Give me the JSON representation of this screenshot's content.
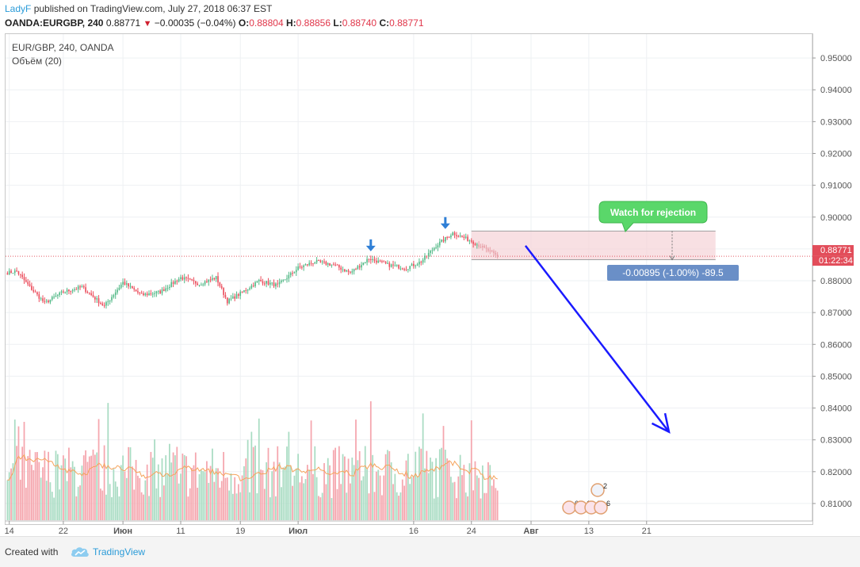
{
  "header": {
    "author": "LadyF",
    "published_text": "published on TradingView.com, July 27, 2018 06:37 EST"
  },
  "quote": {
    "symbol": "OANDA:EURGBP, 240",
    "last": "0.88771",
    "change": "−0.00035 (−0.04%)",
    "o_label": "O:",
    "o_value": "0.88804",
    "h_label": "H:",
    "h_value": "0.88856",
    "l_label": "L:",
    "l_value": "0.88740",
    "c_label": "C:",
    "c_value": "0.88771"
  },
  "legend": {
    "series": "EUR/GBP, 240, OANDA",
    "volume": "Объём (20)"
  },
  "footer": {
    "created_with": "Created with",
    "brand": "TradingView"
  },
  "colors": {
    "up": "#53b987",
    "down": "#eb4d5c",
    "vol_up": "#a9dcc3",
    "vol_down": "#f5a6ae",
    "ma": "#f5a35b",
    "arrow": "#1a1aff",
    "box_fill": "#f6d6d9",
    "callout": "#5ad76a",
    "measure_label": "#6a8fc7"
  },
  "chart_data": {
    "type": "candlestick",
    "symbol": "EUR/GBP",
    "timeframe": "240",
    "y_range": [
      0.8045,
      0.9575
    ],
    "y_ticks": [
      "0.95000",
      "0.94000",
      "0.93000",
      "0.92000",
      "0.91000",
      "0.90000",
      "0.89000",
      "0.88000",
      "0.87000",
      "0.86000",
      "0.85000",
      "0.84000",
      "0.83000",
      "0.82000",
      "0.81000"
    ],
    "y_tick_values": [
      0.95,
      0.94,
      0.93,
      0.92,
      0.91,
      0.9,
      0.89,
      0.88,
      0.87,
      0.86,
      0.85,
      0.84,
      0.83,
      0.82,
      0.81
    ],
    "x_labels": [
      {
        "label": "14",
        "bar": 1
      },
      {
        "label": "22",
        "bar": 30
      },
      {
        "label": "Июн",
        "bar": 62
      },
      {
        "label": "11",
        "bar": 93
      },
      {
        "label": "19",
        "bar": 125
      },
      {
        "label": "Июл",
        "bar": 156
      },
      {
        "label": "16",
        "bar": 218
      },
      {
        "label": "24",
        "bar": 249
      },
      {
        "label": "Авг",
        "bar": 281
      },
      {
        "label": "13",
        "bar": 312
      },
      {
        "label": "21",
        "bar": 343
      }
    ],
    "x_bar_range": [
      -1,
      432
    ],
    "key_points": [
      {
        "bar": 0,
        "price": 0.8825
      },
      {
        "bar": 5,
        "price": 0.883
      },
      {
        "bar": 12,
        "price": 0.878
      },
      {
        "bar": 20,
        "price": 0.873
      },
      {
        "bar": 30,
        "price": 0.8765
      },
      {
        "bar": 40,
        "price": 0.878
      },
      {
        "bar": 52,
        "price": 0.872
      },
      {
        "bar": 62,
        "price": 0.8795
      },
      {
        "bar": 72,
        "price": 0.8755
      },
      {
        "bar": 82,
        "price": 0.8765
      },
      {
        "bar": 93,
        "price": 0.881
      },
      {
        "bar": 103,
        "price": 0.879
      },
      {
        "bar": 112,
        "price": 0.881
      },
      {
        "bar": 118,
        "price": 0.8735
      },
      {
        "bar": 125,
        "price": 0.876
      },
      {
        "bar": 135,
        "price": 0.88
      },
      {
        "bar": 145,
        "price": 0.8785
      },
      {
        "bar": 156,
        "price": 0.884
      },
      {
        "bar": 165,
        "price": 0.886
      },
      {
        "bar": 175,
        "price": 0.885
      },
      {
        "bar": 184,
        "price": 0.8825
      },
      {
        "bar": 194,
        "price": 0.887
      },
      {
        "bar": 204,
        "price": 0.885
      },
      {
        "bar": 214,
        "price": 0.884
      },
      {
        "bar": 222,
        "price": 0.886
      },
      {
        "bar": 230,
        "price": 0.891
      },
      {
        "bar": 239,
        "price": 0.895
      },
      {
        "bar": 249,
        "price": 0.8925
      },
      {
        "bar": 263,
        "price": 0.8877
      }
    ],
    "last_bar": 263,
    "current_price": 0.88771,
    "current_price_label": "0.88771",
    "countdown_label": "01:22:34",
    "volume_ma_period": 20,
    "volume_spike_bar": 195,
    "annotations": {
      "callout_text": "Watch for rejection",
      "measure_text": "-0.00895 (-1.00%) -89.5",
      "measure_from": 0.8956,
      "measure_to": 0.8866,
      "zone_top": 0.8956,
      "zone_bottom": 0.8866,
      "zone_bar_start": 249,
      "zone_bar_end": 380,
      "signal_arrows": [
        {
          "bar": 195,
          "price": 0.89
        },
        {
          "bar": 235,
          "price": 0.897
        }
      ],
      "trend_arrow_from": {
        "bar": 278,
        "price": 0.891
      },
      "trend_arrow_to": {
        "bar": 355,
        "price": 0.8325
      },
      "event_badges": [
        "6",
        "13",
        "3",
        "6",
        "2"
      ]
    }
  }
}
